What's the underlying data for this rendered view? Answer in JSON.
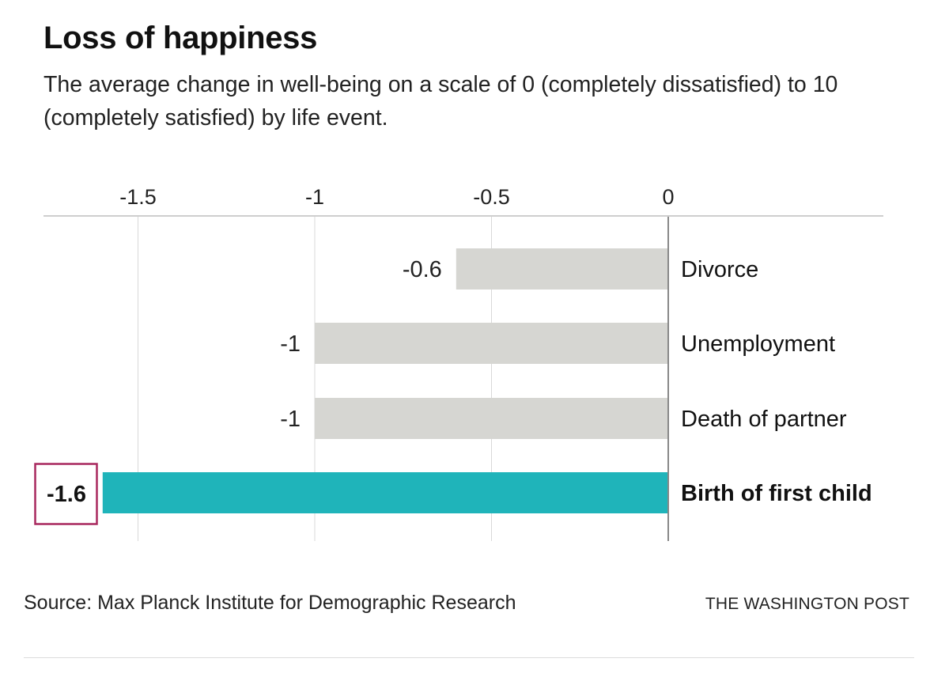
{
  "chart_data": {
    "type": "bar",
    "orientation": "horizontal",
    "title": "Loss of happiness",
    "subtitle": "The average change in well-being on a scale of 0 (completely dissatisfied) to 10 (completely satisfied) by life event.",
    "categories": [
      "Divorce",
      "Unemployment",
      "Death of partner",
      "Birth of first child"
    ],
    "values": [
      -0.6,
      -1,
      -1,
      -1.6
    ],
    "value_labels": [
      "-0.6",
      "-1",
      "-1",
      "-1.6"
    ],
    "highlight_index": 3,
    "x_ticks": [
      -1.5,
      -1,
      -0.5,
      0
    ],
    "x_tick_labels": [
      "-1.5",
      "-1",
      "-0.5",
      "0"
    ],
    "xlim": [
      -1.75,
      0
    ],
    "axis_position": "top",
    "grid": true,
    "colors": {
      "bar": "#d6d6d2",
      "highlight": "#1fb4ba",
      "highlight_box": "#a8285e",
      "gridline": "#d9d9d9",
      "zero_line": "#888888"
    }
  },
  "source": "Source: Max Planck Institute for Demographic Research",
  "credit": "THE WASHINGTON POST"
}
